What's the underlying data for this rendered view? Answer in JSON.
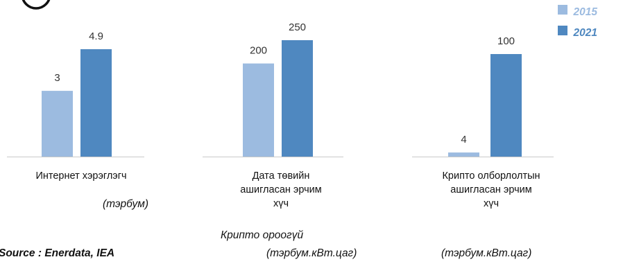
{
  "chart_data": {
    "type": "bar",
    "colors": {
      "2015": "#9cbbe0",
      "2021": "#4f88c0",
      "axis": "#c8c8c8"
    },
    "legend": {
      "placement": "top-right",
      "entries": [
        "2015",
        "2021"
      ]
    },
    "panels": [
      {
        "category": [
          "Интернет хэрэглэгч"
        ],
        "values": {
          "2015": 3,
          "2021": 4.9
        },
        "labels": {
          "2015": "3",
          "2021": "4.9"
        }
      },
      {
        "category": [
          "Дата төвийн",
          "ашигласан эрчим",
          "хүч"
        ],
        "values": {
          "2015": 200,
          "2021": 250
        },
        "labels": {
          "2015": "200",
          "2021": "250"
        }
      },
      {
        "category": [
          "Крипто олборлолтын",
          "ашигласан эрчим",
          "хүч"
        ],
        "values": {
          "2015": 4,
          "2021": 100
        },
        "labels": {
          "2015": "4",
          "2021": "100"
        }
      }
    ],
    "units": [
      "(тэрбум)",
      "Крипто ороогүй",
      "(тэрбум.кВт.цаг)",
      "(тэрбум.кВт.цаг)"
    ],
    "source": "Source : Enerdata, IEA"
  }
}
